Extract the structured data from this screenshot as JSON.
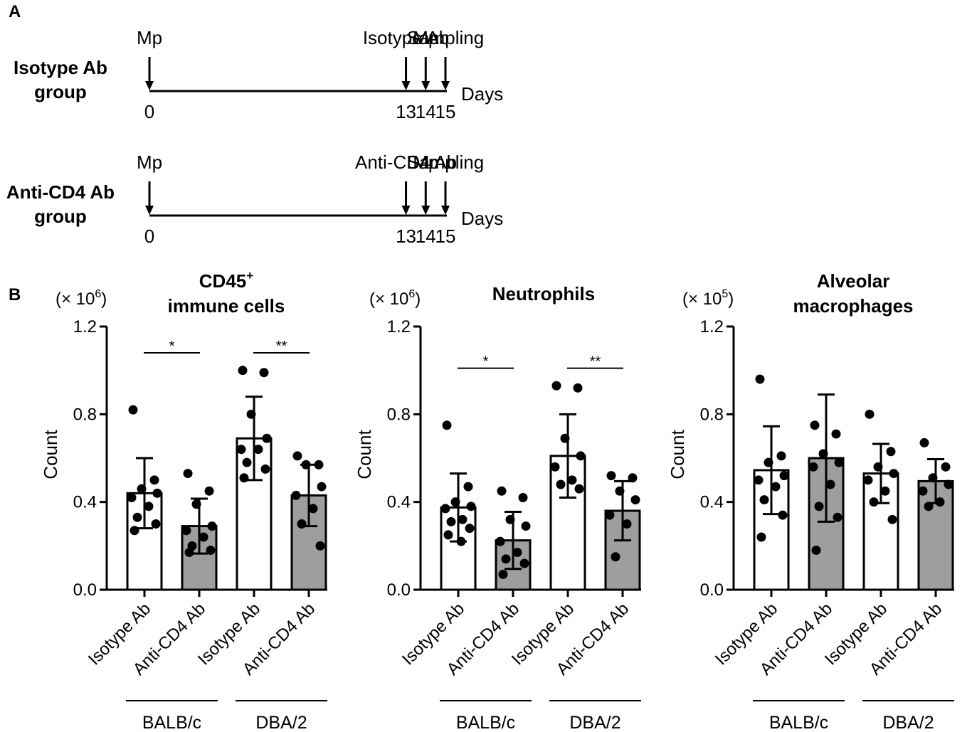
{
  "panel_a": {
    "letter": "A",
    "timelines": [
      {
        "group_line1": "Isotype Ab",
        "group_line2": "group",
        "events": [
          {
            "day": 0,
            "label": "Mp"
          },
          {
            "day": 13,
            "label": "Isotype Ab"
          },
          {
            "day": 14,
            "label": "Mp"
          },
          {
            "day": 15,
            "label": "Sampling"
          }
        ],
        "axis_label": "Days"
      },
      {
        "group_line1": "Anti-CD4 Ab",
        "group_line2": "group",
        "events": [
          {
            "day": 0,
            "label": "Mp"
          },
          {
            "day": 13,
            "label": "Anti-CD4 Ab"
          },
          {
            "day": 14,
            "label": "Mp"
          },
          {
            "day": 15,
            "label": "Sampling"
          }
        ],
        "axis_label": "Days"
      }
    ]
  },
  "panel_b": {
    "letter": "B",
    "bar_colors": [
      "#ffffff",
      "#9e9e9e",
      "#ffffff",
      "#9e9e9e"
    ]
  },
  "chart_data": [
    {
      "type": "bar",
      "title_line1": "CD45",
      "title_sup": "+",
      "title_line2": "immune cells",
      "unit_prefix": "(× 10",
      "unit_exp": "6",
      "unit_suffix": ")",
      "ylabel": "Count",
      "ylim": [
        0,
        1.2
      ],
      "yticks": [
        "0.0",
        "0.4",
        "0.8",
        "1.2"
      ],
      "categories": [
        "Isotype Ab",
        "Anti-CD4 Ab",
        "Isotype Ab",
        "Anti-CD4 Ab"
      ],
      "groups": [
        {
          "name": "BALB/c",
          "categories": [
            0,
            1
          ]
        },
        {
          "name": "DBA/2",
          "categories": [
            2,
            3
          ]
        }
      ],
      "means": [
        0.44,
        0.29,
        0.69,
        0.43
      ],
      "sd": [
        0.16,
        0.125,
        0.19,
        0.14
      ],
      "points": [
        [
          0.82,
          0.5,
          0.46,
          0.44,
          0.42,
          0.38,
          0.33,
          0.3,
          0.27
        ],
        [
          0.53,
          0.45,
          0.39,
          0.29,
          0.27,
          0.24,
          0.2,
          0.18,
          0.17
        ],
        [
          1.0,
          0.99,
          0.8,
          0.69,
          0.64,
          0.64,
          0.58,
          0.55,
          0.51
        ],
        [
          0.61,
          0.57,
          0.57,
          0.47,
          0.43,
          0.37,
          0.3,
          0.2
        ]
      ],
      "comparisons": [
        {
          "from": 0,
          "to": 1,
          "value": 1.08,
          "label": "*"
        },
        {
          "from": 2,
          "to": 3,
          "value": 1.08,
          "label": "**"
        }
      ]
    },
    {
      "type": "bar",
      "title_line1": "Neutrophils",
      "title_sup": "",
      "title_line2": "",
      "unit_prefix": "(× 10",
      "unit_exp": "6",
      "unit_suffix": ")",
      "ylabel": "Count",
      "ylim": [
        0,
        1.2
      ],
      "yticks": [
        "0.0",
        "0.4",
        "0.8",
        "1.2"
      ],
      "categories": [
        "Isotype Ab",
        "Anti-CD4 Ab",
        "Isotype Ab",
        "Anti-CD4 Ab"
      ],
      "groups": [
        {
          "name": "BALB/c",
          "categories": [
            0,
            1
          ]
        },
        {
          "name": "DBA/2",
          "categories": [
            2,
            3
          ]
        }
      ],
      "means": [
        0.375,
        0.225,
        0.61,
        0.36
      ],
      "sd": [
        0.155,
        0.13,
        0.19,
        0.135
      ],
      "points": [
        [
          0.75,
          0.47,
          0.4,
          0.38,
          0.37,
          0.32,
          0.31,
          0.28,
          0.25,
          0.22
        ],
        [
          0.45,
          0.42,
          0.32,
          0.29,
          0.22,
          0.17,
          0.14,
          0.12,
          0.07
        ],
        [
          0.93,
          0.92,
          0.69,
          0.61,
          0.56,
          0.5,
          0.48,
          0.46
        ],
        [
          0.52,
          0.51,
          0.45,
          0.41,
          0.34,
          0.3,
          0.15
        ]
      ],
      "comparisons": [
        {
          "from": 0,
          "to": 1,
          "value": 1.01,
          "label": "*"
        },
        {
          "from": 2,
          "to": 3,
          "value": 1.01,
          "label": "**"
        }
      ]
    },
    {
      "type": "bar",
      "title_line1": "Alveolar",
      "title_sup": "",
      "title_line2": "macrophages",
      "unit_prefix": "(× 10",
      "unit_exp": "5",
      "unit_suffix": ")",
      "ylabel": "Count",
      "ylim": [
        0,
        1.2
      ],
      "yticks": [
        "0.0",
        "0.4",
        "0.8",
        "1.2"
      ],
      "categories": [
        "Isotype Ab",
        "Anti-CD4 Ab",
        "Isotype Ab",
        "Anti-CD4 Ab"
      ],
      "groups": [
        {
          "name": "BALB/c",
          "categories": [
            0,
            1
          ]
        },
        {
          "name": "DBA/2",
          "categories": [
            2,
            3
          ]
        }
      ],
      "means": [
        0.545,
        0.6,
        0.53,
        0.495
      ],
      "sd": [
        0.2,
        0.29,
        0.135,
        0.1
      ],
      "points": [
        [
          0.96,
          0.61,
          0.58,
          0.52,
          0.5,
          0.47,
          0.41,
          0.34,
          0.24
        ],
        [
          0.75,
          0.71,
          0.62,
          0.58,
          0.56,
          0.48,
          0.38,
          0.33,
          0.18
        ],
        [
          0.8,
          0.63,
          0.56,
          0.53,
          0.5,
          0.45,
          0.4,
          0.32
        ],
        [
          0.67,
          0.56,
          0.51,
          0.48,
          0.45,
          0.4,
          0.38
        ]
      ],
      "comparisons": []
    }
  ]
}
